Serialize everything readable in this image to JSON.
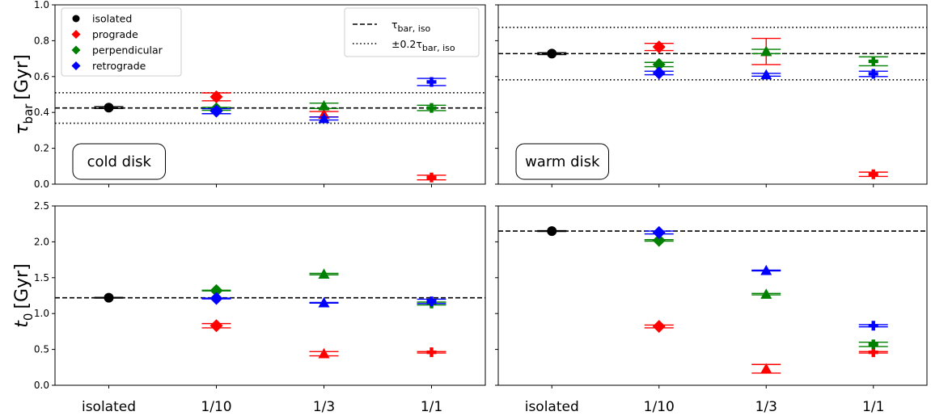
{
  "chart_data": {
    "type": "scatter",
    "categories": [
      "isolated",
      "1/10",
      "1/3",
      "1/1"
    ],
    "series_styles": {
      "isolated": {
        "color": "#000000",
        "marker": "circle"
      },
      "prograde": {
        "color": "#ff0000",
        "marker": "diamond"
      },
      "perpendicular": {
        "color": "#008000",
        "marker": "diamond"
      },
      "retrograde": {
        "color": "#0000ff",
        "marker": "diamond"
      }
    },
    "category_markers": {
      "isolated": "circle",
      "1/10": "diamond",
      "1/3": "triangle",
      "1/1": "plus"
    },
    "legend": {
      "entries": [
        "isolated",
        "prograde",
        "perpendicular",
        "retrograde"
      ],
      "placement": "upper-left",
      "line_entries": [
        "τbar, iso",
        "±0.2τbar, iso"
      ],
      "line_entries_placement": "upper-right"
    },
    "panels": [
      {
        "id": "tau-cold",
        "label": "cold disk",
        "ylabel_main": "τ",
        "ylabel_sub": "bar",
        "ylabel_unit": "[Gyr]",
        "ylim": [
          0,
          1.0
        ],
        "yticks": [
          "0.0",
          "0.2",
          "0.4",
          "0.6",
          "0.8",
          "1.0"
        ],
        "reference_dashed": 0.425,
        "reference_dotted": [
          0.34,
          0.51
        ],
        "points": [
          {
            "cat": "isolated",
            "series": "isolated",
            "y": 0.427,
            "err": 0.005
          },
          {
            "cat": "1/10",
            "series": "prograde",
            "y": 0.487,
            "err": 0.022
          },
          {
            "cat": "1/10",
            "series": "perpendicular",
            "y": 0.42,
            "err": 0.008
          },
          {
            "cat": "1/10",
            "series": "retrograde",
            "y": 0.407,
            "err": 0.014
          },
          {
            "cat": "1/3",
            "series": "prograde",
            "y": 0.39,
            "err": 0.015
          },
          {
            "cat": "1/3",
            "series": "perpendicular",
            "y": 0.437,
            "err": 0.015
          },
          {
            "cat": "1/3",
            "series": "retrograde",
            "y": 0.366,
            "err": 0.008
          },
          {
            "cat": "1/1",
            "series": "prograde",
            "y": 0.037,
            "err": 0.013
          },
          {
            "cat": "1/1",
            "series": "perpendicular",
            "y": 0.425,
            "err": 0.015
          },
          {
            "cat": "1/1",
            "series": "retrograde",
            "y": 0.57,
            "err": 0.02
          }
        ]
      },
      {
        "id": "tau-warm",
        "label": "warm disk",
        "ylim": [
          0,
          1.0
        ],
        "yticks": [],
        "reference_dashed": 0.728,
        "reference_dotted": [
          0.582,
          0.874
        ],
        "points": [
          {
            "cat": "isolated",
            "series": "isolated",
            "y": 0.728,
            "err": 0.005
          },
          {
            "cat": "1/10",
            "series": "prograde",
            "y": 0.765,
            "err": 0.02
          },
          {
            "cat": "1/10",
            "series": "perpendicular",
            "y": 0.667,
            "err": 0.012
          },
          {
            "cat": "1/10",
            "series": "retrograde",
            "y": 0.62,
            "err": 0.01
          },
          {
            "cat": "1/3",
            "series": "prograde",
            "y": 0.74,
            "err": 0.073
          },
          {
            "cat": "1/3",
            "series": "perpendicular",
            "y": 0.74,
            "err": 0.012
          },
          {
            "cat": "1/3",
            "series": "retrograde",
            "y": 0.61,
            "err": 0.008
          },
          {
            "cat": "1/1",
            "series": "prograde",
            "y": 0.055,
            "err": 0.012
          },
          {
            "cat": "1/1",
            "series": "perpendicular",
            "y": 0.685,
            "err": 0.025
          },
          {
            "cat": "1/1",
            "series": "retrograde",
            "y": 0.615,
            "err": 0.015
          }
        ]
      },
      {
        "id": "t0-cold",
        "ylabel_main": "t",
        "ylabel_sub": "0",
        "ylabel_unit": "[Gyr]",
        "ylim": [
          0,
          2.5
        ],
        "yticks": [
          "0.0",
          "0.5",
          "1.0",
          "1.5",
          "2.0",
          "2.5"
        ],
        "reference_dashed": 1.22,
        "points": [
          {
            "cat": "isolated",
            "series": "isolated",
            "y": 1.22,
            "err": 0.005
          },
          {
            "cat": "1/10",
            "series": "prograde",
            "y": 0.83,
            "err": 0.03
          },
          {
            "cat": "1/10",
            "series": "perpendicular",
            "y": 1.32,
            "err": 0.005
          },
          {
            "cat": "1/10",
            "series": "retrograde",
            "y": 1.21,
            "err": 0.005
          },
          {
            "cat": "1/3",
            "series": "prograde",
            "y": 0.44,
            "err": 0.03
          },
          {
            "cat": "1/3",
            "series": "perpendicular",
            "y": 1.55,
            "err": 0.01
          },
          {
            "cat": "1/3",
            "series": "retrograde",
            "y": 1.15,
            "err": 0.005
          },
          {
            "cat": "1/1",
            "series": "prograde",
            "y": 0.46,
            "err": 0.01
          },
          {
            "cat": "1/1",
            "series": "perpendicular",
            "y": 1.14,
            "err": 0.02
          },
          {
            "cat": "1/1",
            "series": "retrograde",
            "y": 1.17,
            "err": 0.03
          }
        ]
      },
      {
        "id": "t0-warm",
        "ylim": [
          0,
          2.5
        ],
        "yticks": [],
        "reference_dashed": 2.15,
        "points": [
          {
            "cat": "isolated",
            "series": "isolated",
            "y": 2.15,
            "err": 0.005
          },
          {
            "cat": "1/10",
            "series": "prograde",
            "y": 0.82,
            "err": 0.02
          },
          {
            "cat": "1/10",
            "series": "perpendicular",
            "y": 2.02,
            "err": 0.01
          },
          {
            "cat": "1/10",
            "series": "retrograde",
            "y": 2.13,
            "err": 0.02
          },
          {
            "cat": "1/3",
            "series": "prograde",
            "y": 0.23,
            "err": 0.06
          },
          {
            "cat": "1/3",
            "series": "perpendicular",
            "y": 1.27,
            "err": 0.01
          },
          {
            "cat": "1/3",
            "series": "retrograde",
            "y": 1.6,
            "err": 0.005
          },
          {
            "cat": "1/1",
            "series": "prograde",
            "y": 0.46,
            "err": 0.01
          },
          {
            "cat": "1/1",
            "series": "perpendicular",
            "y": 0.57,
            "err": 0.03
          },
          {
            "cat": "1/1",
            "series": "retrograde",
            "y": 0.83,
            "err": 0.015
          }
        ]
      }
    ]
  }
}
